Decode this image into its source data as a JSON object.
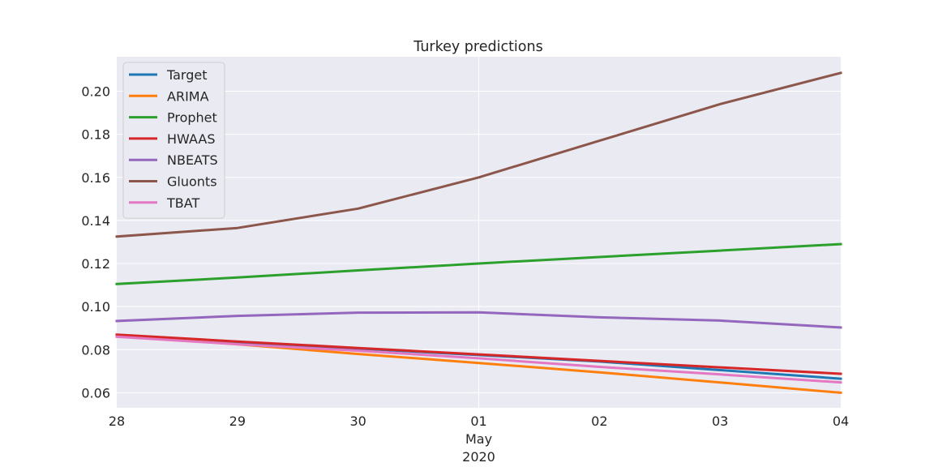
{
  "chart_data": {
    "type": "line",
    "title": "Turkey predictions",
    "xlabel": "",
    "ylabel": "",
    "x": [
      "28",
      "29",
      "30",
      "01",
      "02",
      "03",
      "04"
    ],
    "x_dates": [
      "2020-04-28",
      "2020-04-29",
      "2020-04-30",
      "2020-05-01",
      "2020-05-02",
      "2020-05-03",
      "2020-05-04"
    ],
    "x_secondary_label": {
      "under": "01",
      "lines": [
        "May",
        "2020"
      ]
    },
    "ylim": [
      0.053,
      0.216
    ],
    "yticks": [
      0.06,
      0.08,
      0.1,
      0.12,
      0.14,
      0.16,
      0.18,
      0.2
    ],
    "ytick_labels": [
      "0.06",
      "0.08",
      "0.10",
      "0.12",
      "0.14",
      "0.16",
      "0.18",
      "0.20"
    ],
    "grid": true,
    "legend_position": "top-left",
    "series": [
      {
        "name": "Target",
        "color": "#1f77b4",
        "values": [
          0.0865,
          0.0835,
          0.0805,
          0.0775,
          0.0745,
          0.0705,
          0.0665
        ]
      },
      {
        "name": "ARIMA",
        "color": "#ff7f0e",
        "values": [
          0.0865,
          0.0825,
          0.078,
          0.0738,
          0.0695,
          0.0648,
          0.06
        ]
      },
      {
        "name": "Prophet",
        "color": "#2ca02c",
        "values": [
          0.1105,
          0.1135,
          0.1168,
          0.12,
          0.123,
          0.126,
          0.129
        ]
      },
      {
        "name": "HWAAS",
        "color": "#d62728",
        "values": [
          0.087,
          0.0838,
          0.0808,
          0.0778,
          0.0748,
          0.0718,
          0.0688
        ]
      },
      {
        "name": "NBEATS",
        "color": "#9467bd",
        "values": [
          0.0933,
          0.0957,
          0.0972,
          0.0973,
          0.095,
          0.0935,
          0.0903
        ]
      },
      {
        "name": "Gluonts",
        "color": "#8c564b",
        "values": [
          0.1325,
          0.1365,
          0.1455,
          0.16,
          0.177,
          0.194,
          0.2085
        ]
      },
      {
        "name": "TBAT",
        "color": "#e377c2",
        "values": [
          0.086,
          0.0825,
          0.0795,
          0.076,
          0.072,
          0.0685,
          0.0648
        ]
      }
    ]
  }
}
